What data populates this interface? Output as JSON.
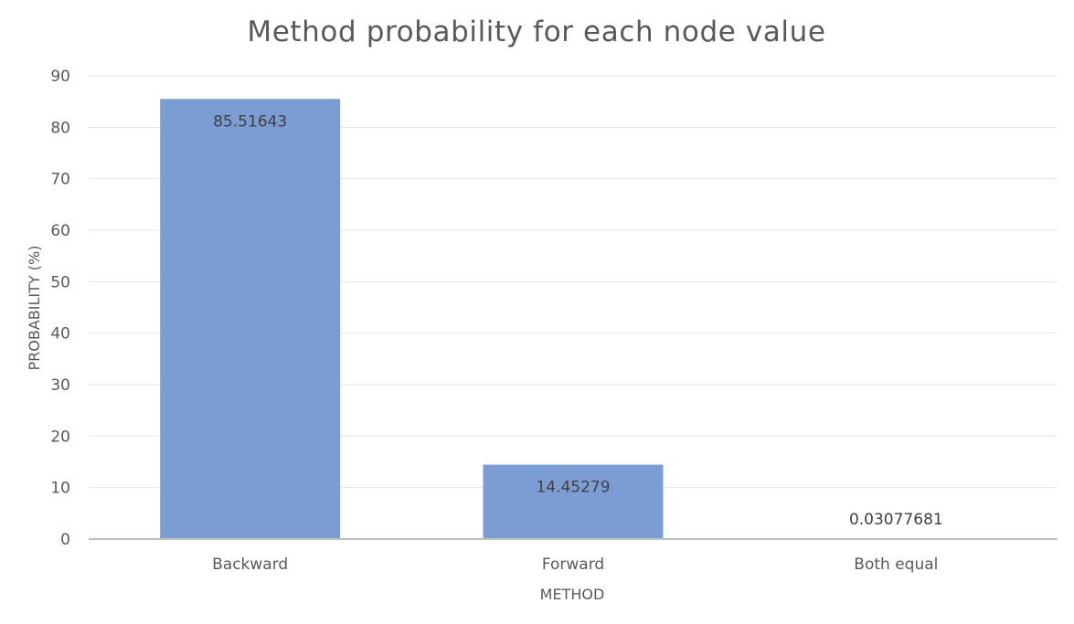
{
  "chart_data": {
    "type": "bar",
    "title": "Method probability for each node value",
    "xlabel": "METHOD",
    "ylabel": "PROBABILITY (%)",
    "categories": [
      "Backward",
      "Forward",
      "Both equal"
    ],
    "values": [
      85.51643,
      14.45279,
      0.03077681
    ],
    "data_labels": [
      "85.51643",
      "14.45279",
      "0.03077681"
    ],
    "ylim": [
      0,
      90
    ],
    "yticks": [
      0,
      10,
      20,
      30,
      40,
      50,
      60,
      70,
      80,
      90
    ],
    "grid": true,
    "legend": "none",
    "colors": {
      "bar": "#7b9dd4",
      "gridline": "#e6e6e6",
      "baseline": "#bfbfbf",
      "text": "#595959"
    }
  }
}
